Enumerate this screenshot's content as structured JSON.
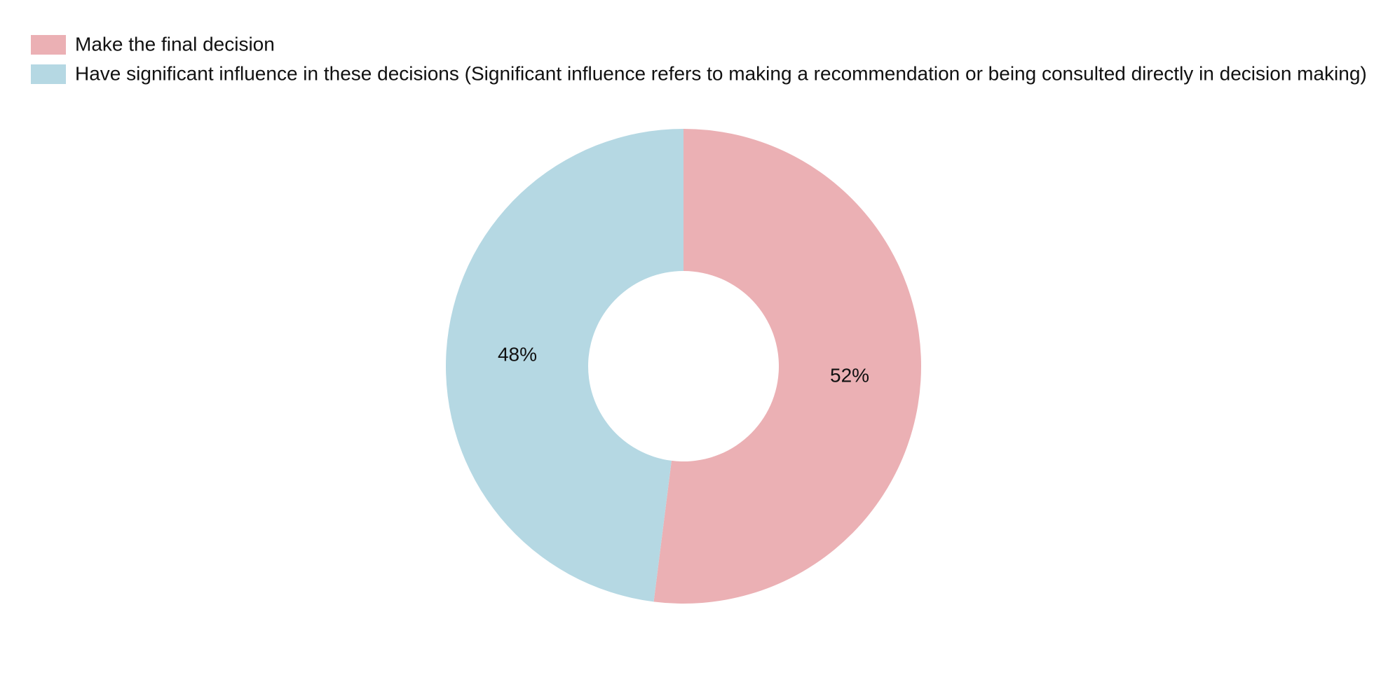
{
  "chart_data": {
    "type": "pie",
    "categories": [
      "Make the final decision",
      "Have significant influence in these decisions (Significant influence refers to making a recommendation or being consulted directly in decision making)"
    ],
    "values": [
      52,
      48
    ],
    "value_labels": [
      "52%",
      "48%"
    ],
    "colors": [
      "#ebb0b4",
      "#b5d8e3"
    ]
  }
}
